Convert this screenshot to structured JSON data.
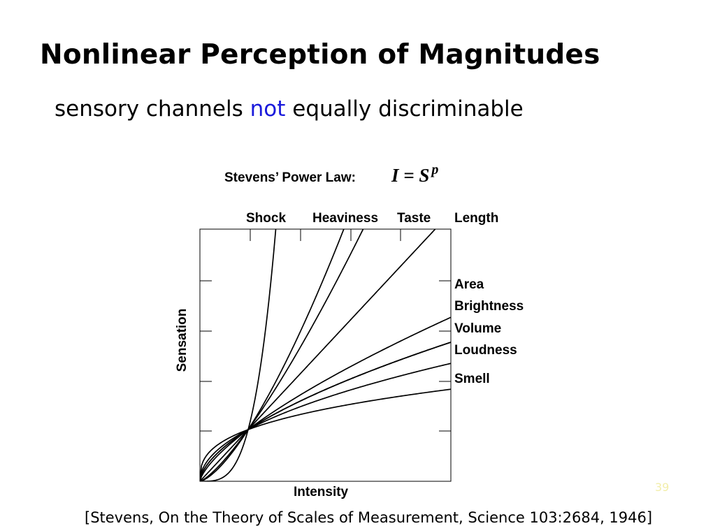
{
  "slide": {
    "title": "Nonlinear Perception of Magnitudes",
    "subtitle_pre": "sensory channels ",
    "subtitle_accent": "not",
    "subtitle_post": " equally discriminable",
    "citation": "[Stevens, On the Theory of Scales of Measurement, Science 103:2684, 1946]",
    "page_number": "39",
    "accent_color": "#1a1adb"
  },
  "figure": {
    "title": "Stevens’ Power Law:",
    "formula_base": "I = S",
    "formula_exponent": "p"
  },
  "chart_data": {
    "type": "line",
    "title": "Stevens’ Power Law:",
    "xlabel": "Intensity",
    "ylabel": "Sensation",
    "grid": false,
    "series": [
      {
        "name": "Shock",
        "exponent": 3.5
      },
      {
        "name": "Heaviness",
        "exponent": 1.45
      },
      {
        "name": "Taste",
        "exponent": 1.3
      },
      {
        "name": "Length",
        "exponent": 1.0
      },
      {
        "name": "Area",
        "exponent": 0.7
      },
      {
        "name": "Brightness",
        "exponent": 0.6
      },
      {
        "name": "Volume",
        "exponent": 0.6
      },
      {
        "name": "Loudness",
        "exponent": 0.5
      },
      {
        "name": "Smell",
        "exponent": 0.35
      }
    ]
  }
}
